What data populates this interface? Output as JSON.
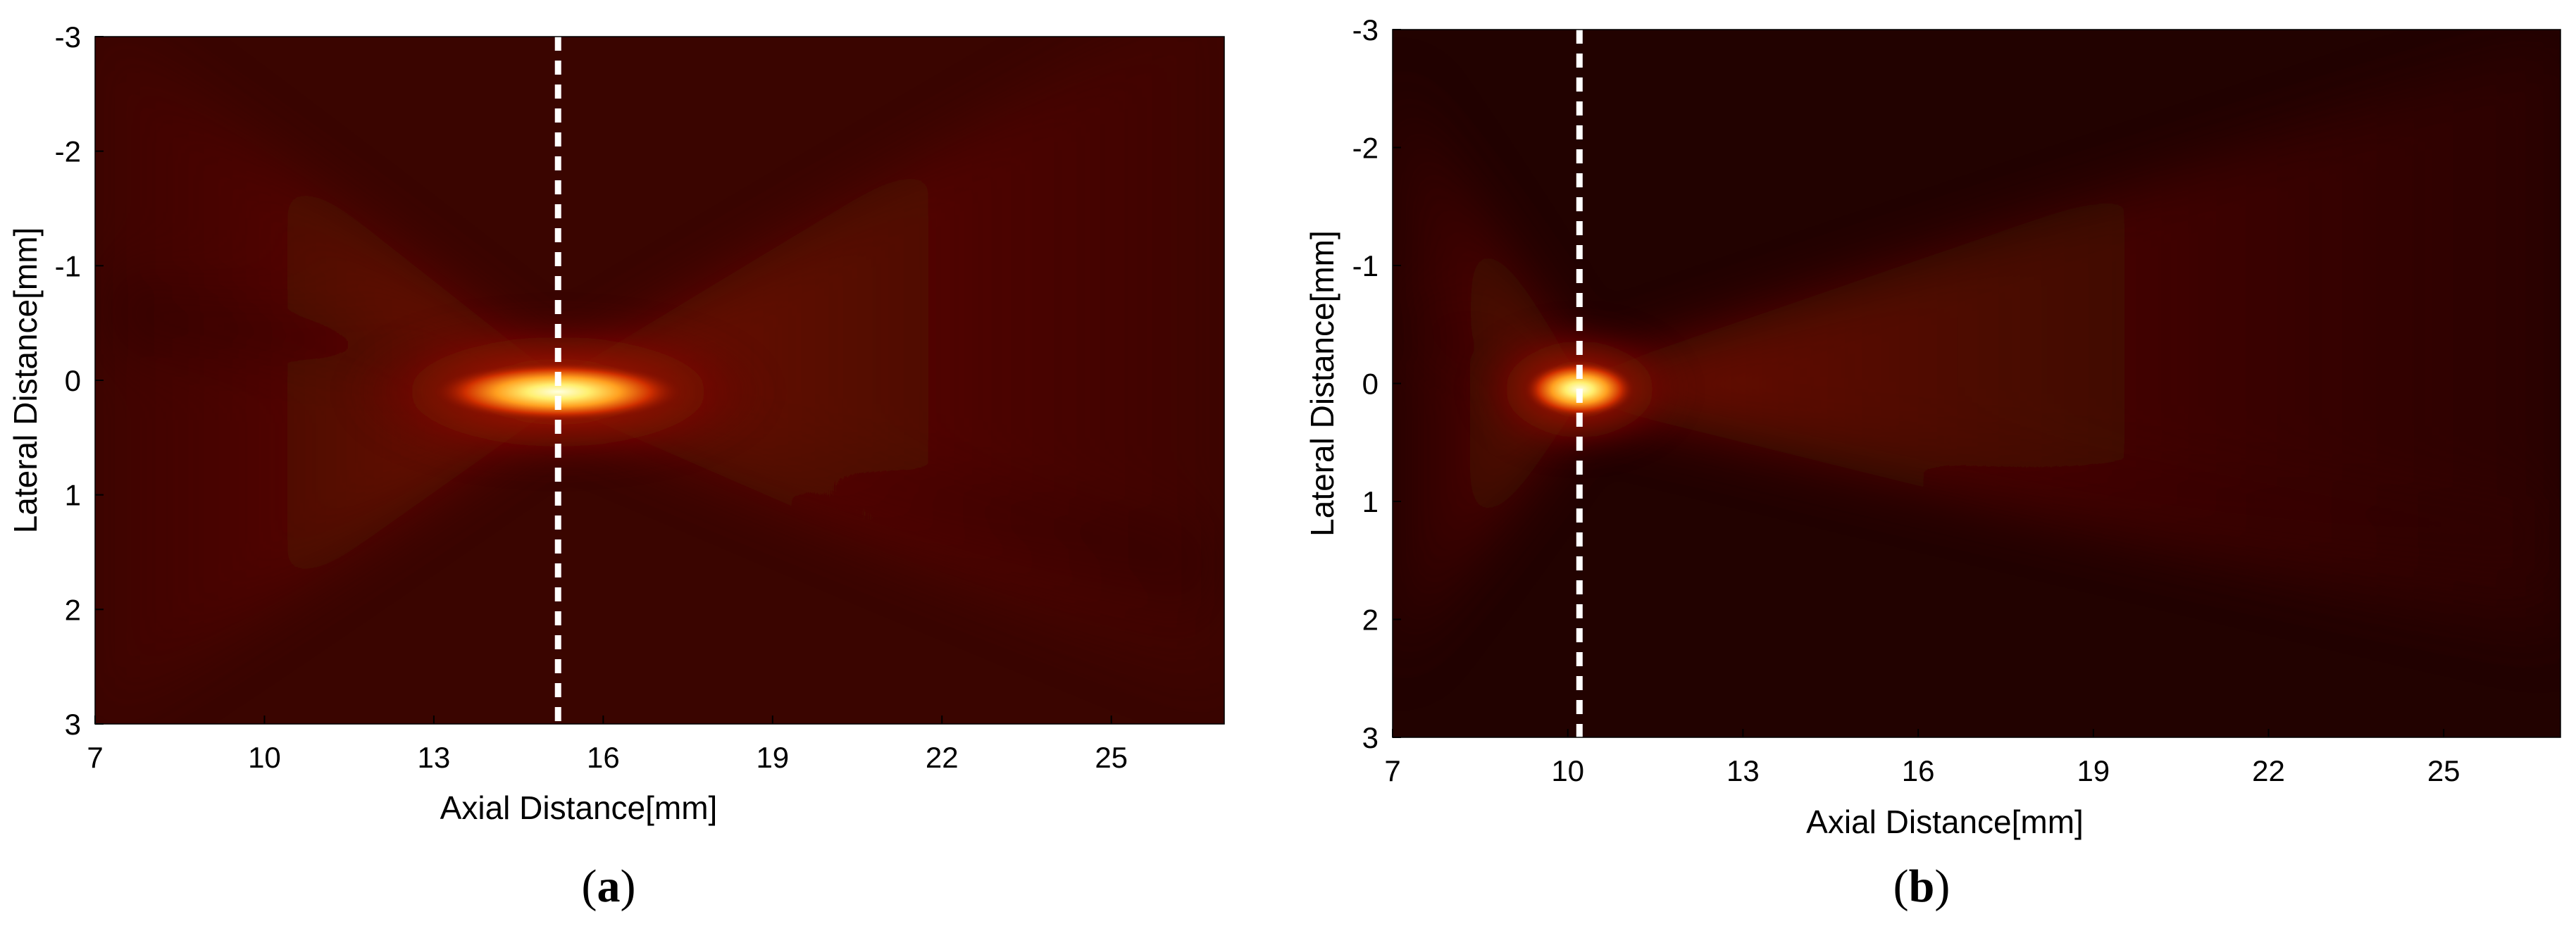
{
  "figure": {
    "panels": [
      {
        "caption_prefix": "(",
        "caption_letter": "a",
        "caption_suffix": ")"
      },
      {
        "caption_prefix": "(",
        "caption_letter": "b",
        "caption_suffix": ")"
      }
    ]
  },
  "chart_data": [
    {
      "type": "heatmap",
      "title": "",
      "xlabel": "Axial Distance[mm]",
      "ylabel": "Lateral Distance[mm]",
      "xlim": [
        7,
        27
      ],
      "ylim": [
        -3,
        3
      ],
      "y_axis_reversed": true,
      "xticks": [
        7,
        10,
        13,
        16,
        19,
        22,
        25
      ],
      "yticks": [
        -3,
        -2,
        -1,
        0,
        1,
        2,
        3
      ],
      "colormap": "hot",
      "grid": false,
      "focal_spot": {
        "axial": 15.2,
        "lateral": 0.1
      },
      "marker_line": {
        "style": "white dashed vertical",
        "axial": 15.2
      }
    },
    {
      "type": "heatmap",
      "title": "",
      "xlabel": "Axial Distance[mm]",
      "ylabel": "Lateral Distance[mm]",
      "xlim": [
        7,
        27
      ],
      "ylim": [
        -3,
        3
      ],
      "y_axis_reversed": true,
      "xticks": [
        7,
        10,
        13,
        16,
        19,
        22,
        25
      ],
      "yticks": [
        -3,
        -2,
        -1,
        0,
        1,
        2,
        3
      ],
      "colormap": "hot",
      "grid": false,
      "focal_spot": {
        "axial": 10.2,
        "lateral": 0.05
      },
      "marker_line": {
        "style": "white dashed vertical",
        "axial": 10.2
      }
    }
  ]
}
